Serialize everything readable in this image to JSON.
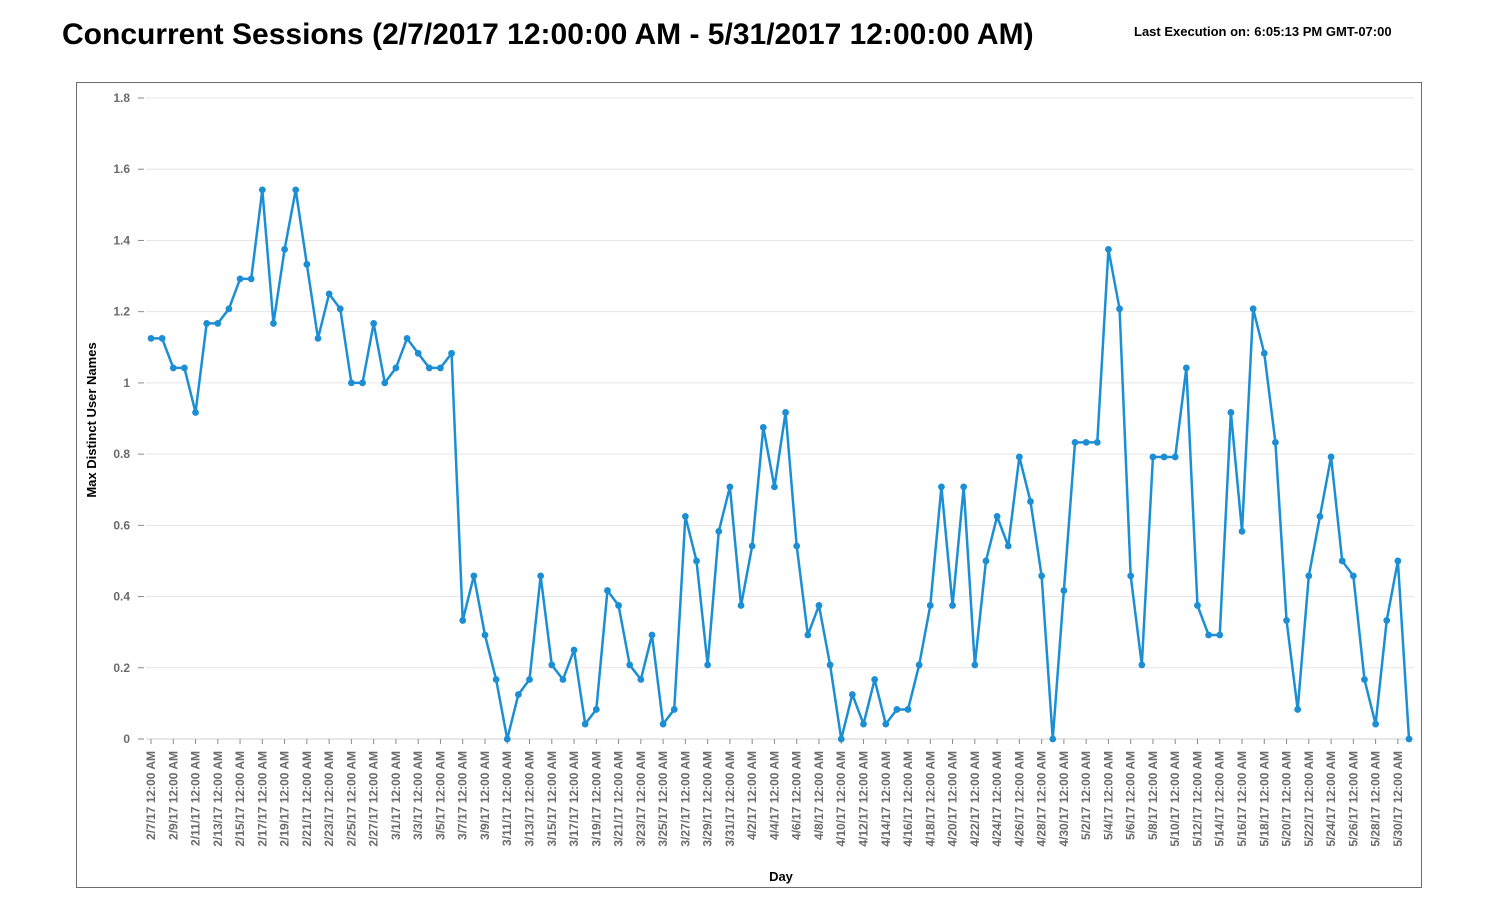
{
  "header": {
    "title": "Concurrent Sessions (2/7/2017 12:00:00 AM - 5/31/2017 12:00:00 AM)",
    "last_execution_label": "Last Execution on:",
    "last_execution_value": "6:05:13 PM GMT-07:00"
  },
  "colors": {
    "series": "#1c8fd4",
    "grid": "#e6e6e6",
    "frame": "#6d6d6d",
    "tick_text": "#6b6b6b"
  },
  "chart_data": {
    "type": "line",
    "title": "Concurrent Sessions (2/7/2017 12:00:00 AM - 5/31/2017 12:00:00 AM)",
    "xlabel": "Day",
    "ylabel": "Max Distinct User Names",
    "ylim": [
      0,
      1.8
    ],
    "yticks": [
      0,
      0.2,
      0.4,
      0.6,
      0.8,
      1,
      1.2,
      1.4,
      1.6,
      1.8
    ],
    "ytick_labels": [
      "0",
      "0.2",
      "0.4",
      "0.6",
      "0.8",
      "1",
      "1.2",
      "1.4",
      "1.6",
      "1.8"
    ],
    "grid": true,
    "legend": "none",
    "x_tick_labels": [
      "2/7/17 12:00 AM",
      "2/9/17 12:00 AM",
      "2/11/17 12:00 AM",
      "2/13/17 12:00 AM",
      "2/15/17 12:00 AM",
      "2/17/17 12:00 AM",
      "2/19/17 12:00 AM",
      "2/21/17 12:00 AM",
      "2/23/17 12:00 AM",
      "2/25/17 12:00 AM",
      "2/27/17 12:00 AM",
      "3/1/17 12:00 AM",
      "3/3/17 12:00 AM",
      "3/5/17 12:00 AM",
      "3/7/17 12:00 AM",
      "3/9/17 12:00 AM",
      "3/11/17 12:00 AM",
      "3/13/17 12:00 AM",
      "3/15/17 12:00 AM",
      "3/17/17 12:00 AM",
      "3/19/17 12:00 AM",
      "3/21/17 12:00 AM",
      "3/23/17 12:00 AM",
      "3/25/17 12:00 AM",
      "3/27/17 12:00 AM",
      "3/29/17 12:00 AM",
      "3/31/17 12:00 AM",
      "4/2/17 12:00 AM",
      "4/4/17 12:00 AM",
      "4/6/17 12:00 AM",
      "4/8/17 12:00 AM",
      "4/10/17 12:00 AM",
      "4/12/17 12:00 AM",
      "4/14/17 12:00 AM",
      "4/16/17 12:00 AM",
      "4/18/17 12:00 AM",
      "4/20/17 12:00 AM",
      "4/22/17 12:00 AM",
      "4/24/17 12:00 AM",
      "4/26/17 12:00 AM",
      "4/28/17 12:00 AM",
      "4/30/17 12:00 AM",
      "5/2/17 12:00 AM",
      "5/4/17 12:00 AM",
      "5/6/17 12:00 AM",
      "5/8/17 12:00 AM",
      "5/10/17 12:00 AM",
      "5/12/17 12:00 AM",
      "5/14/17 12:00 AM",
      "5/16/17 12:00 AM",
      "5/18/17 12:00 AM",
      "5/20/17 12:00 AM",
      "5/22/17 12:00 AM",
      "5/24/17 12:00 AM",
      "5/26/17 12:00 AM",
      "5/28/17 12:00 AM",
      "5/30/17 12:00 AM"
    ],
    "x": [
      "2/7/17",
      "2/8/17",
      "2/9/17",
      "2/10/17",
      "2/11/17",
      "2/12/17",
      "2/13/17",
      "2/14/17",
      "2/15/17",
      "2/16/17",
      "2/17/17",
      "2/18/17",
      "2/19/17",
      "2/20/17",
      "2/21/17",
      "2/22/17",
      "2/23/17",
      "2/24/17",
      "2/25/17",
      "2/26/17",
      "2/27/17",
      "2/28/17",
      "3/1/17",
      "3/2/17",
      "3/3/17",
      "3/4/17",
      "3/5/17",
      "3/6/17",
      "3/7/17",
      "3/8/17",
      "3/9/17",
      "3/10/17",
      "3/11/17",
      "3/12/17",
      "3/13/17",
      "3/14/17",
      "3/15/17",
      "3/16/17",
      "3/17/17",
      "3/18/17",
      "3/19/17",
      "3/20/17",
      "3/21/17",
      "3/22/17",
      "3/23/17",
      "3/24/17",
      "3/25/17",
      "3/26/17",
      "3/27/17",
      "3/28/17",
      "3/29/17",
      "3/30/17",
      "3/31/17",
      "4/1/17",
      "4/2/17",
      "4/3/17",
      "4/4/17",
      "4/5/17",
      "4/6/17",
      "4/7/17",
      "4/8/17",
      "4/9/17",
      "4/10/17",
      "4/11/17",
      "4/12/17",
      "4/13/17",
      "4/14/17",
      "4/15/17",
      "4/16/17",
      "4/17/17",
      "4/18/17",
      "4/19/17",
      "4/20/17",
      "4/21/17",
      "4/22/17",
      "4/23/17",
      "4/24/17",
      "4/25/17",
      "4/26/17",
      "4/27/17",
      "4/28/17",
      "4/29/17",
      "4/30/17",
      "5/1/17",
      "5/2/17",
      "5/3/17",
      "5/4/17",
      "5/5/17",
      "5/6/17",
      "5/7/17",
      "5/8/17",
      "5/9/17",
      "5/10/17",
      "5/11/17",
      "5/12/17",
      "5/13/17",
      "5/14/17",
      "5/15/17",
      "5/16/17",
      "5/17/17",
      "5/18/17",
      "5/19/17",
      "5/20/17",
      "5/21/17",
      "5/22/17",
      "5/23/17",
      "5/24/17",
      "5/25/17",
      "5/26/17",
      "5/27/17",
      "5/28/17",
      "5/29/17",
      "5/30/17",
      "5/31/17"
    ],
    "series": [
      {
        "values": [
          1.125,
          1.125,
          1.042,
          1.042,
          0.917,
          1.167,
          1.167,
          1.208,
          1.292,
          1.292,
          1.542,
          1.167,
          1.375,
          1.542,
          1.333,
          1.125,
          1.25,
          1.208,
          1.0,
          1.0,
          1.167,
          1.0,
          1.042,
          1.125,
          1.083,
          1.042,
          1.042,
          1.083,
          0.333,
          0.458,
          0.292,
          0.167,
          0.0,
          0.125,
          0.167,
          0.458,
          0.208,
          0.167,
          0.25,
          0.042,
          0.083,
          0.417,
          0.375,
          0.208,
          0.167,
          0.292,
          0.042,
          0.083,
          0.625,
          0.5,
          0.208,
          0.583,
          0.708,
          0.375,
          0.542,
          0.875,
          0.708,
          0.917,
          0.542,
          0.292,
          0.375,
          0.208,
          0.0,
          0.125,
          0.042,
          0.167,
          0.042,
          0.083,
          0.083,
          0.208,
          0.375,
          0.708,
          0.375,
          0.708,
          0.208,
          0.5,
          0.625,
          0.542,
          0.792,
          0.667,
          0.458,
          0.0,
          0.417,
          0.833,
          0.833,
          0.833,
          1.375,
          1.208,
          0.458,
          0.208,
          0.792,
          0.792,
          0.792,
          1.042,
          0.375,
          0.292,
          0.292,
          0.917,
          0.583,
          1.208,
          1.083,
          0.833,
          0.333,
          0.083,
          0.458,
          0.625,
          0.792,
          0.5,
          0.458,
          0.167,
          0.042,
          0.333,
          0.5,
          0.0
        ]
      }
    ]
  }
}
